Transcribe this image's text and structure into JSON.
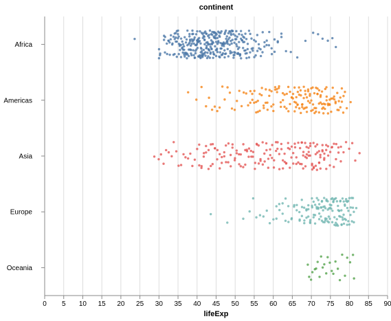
{
  "chart_data": {
    "type": "scatter",
    "title": "continent",
    "xlabel": "lifeExp",
    "ylabel": "",
    "xlim": [
      0,
      90
    ],
    "x_ticks": [
      0,
      5,
      10,
      15,
      20,
      25,
      30,
      35,
      40,
      45,
      50,
      55,
      60,
      65,
      70,
      75,
      80,
      85,
      90
    ],
    "grid": true,
    "jitter": true,
    "categories": [
      "Africa",
      "Americas",
      "Asia",
      "Europe",
      "Oceania"
    ],
    "series": [
      {
        "category": "Africa",
        "color": "#4C78A8",
        "values": [
          23.6,
          30.0,
          30.3,
          31.3,
          31.6,
          32.1,
          32.5,
          32.8,
          33.1,
          33.5,
          33.8,
          34.1,
          34.4,
          34.7,
          35.0,
          35.2,
          35.5,
          35.8,
          36.1,
          36.3,
          36.6,
          36.8,
          37.1,
          37.3,
          37.5,
          37.8,
          38.0,
          38.2,
          38.4,
          38.6,
          38.8,
          39.0,
          39.2,
          39.4,
          39.6,
          39.8,
          40.0,
          40.1,
          40.3,
          40.5,
          40.7,
          40.9,
          41.0,
          41.2,
          41.4,
          41.5,
          41.7,
          41.9,
          42.0,
          42.2,
          42.4,
          42.5,
          42.7,
          42.9,
          43.0,
          43.2,
          43.4,
          43.5,
          43.7,
          43.9,
          44.0,
          44.2,
          44.4,
          44.5,
          44.7,
          44.9,
          45.0,
          45.2,
          45.4,
          45.6,
          45.8,
          46.0,
          46.2,
          46.4,
          46.6,
          46.8,
          47.0,
          47.2,
          47.4,
          47.6,
          47.8,
          48.0,
          48.2,
          48.5,
          48.7,
          48.9,
          49.1,
          49.3,
          49.6,
          49.8,
          50.0,
          50.3,
          50.5,
          50.8,
          51.0,
          51.3,
          51.5,
          51.8,
          52.1,
          52.4,
          52.7,
          53.0,
          53.3,
          53.6,
          53.9,
          54.3,
          54.6,
          55.0,
          55.4,
          55.8,
          56.2,
          56.7,
          57.2,
          57.7,
          58.3,
          58.9,
          59.6,
          60.3,
          61.2,
          62.1,
          63.3,
          64.6,
          66.3,
          68.4,
          70.5,
          71.8,
          72.9,
          74.3,
          75.5,
          76.4
        ],
        "counts": [
          1,
          2,
          2,
          2,
          2,
          2,
          2,
          2,
          2,
          2,
          2,
          3,
          3,
          3,
          3,
          3,
          3,
          3,
          3,
          3,
          3,
          3,
          3,
          3,
          3,
          3,
          3,
          3,
          3,
          3,
          3,
          3,
          3,
          3,
          3,
          3,
          3,
          3,
          3,
          3,
          3,
          3,
          3,
          3,
          3,
          3,
          3,
          3,
          3,
          3,
          3,
          3,
          3,
          3,
          3,
          3,
          3,
          3,
          3,
          3,
          3,
          3,
          3,
          3,
          3,
          3,
          3,
          3,
          3,
          3,
          3,
          3,
          3,
          3,
          3,
          3,
          3,
          3,
          3,
          3,
          3,
          3,
          3,
          3,
          3,
          3,
          3,
          3,
          3,
          3,
          3,
          3,
          3,
          3,
          3,
          3,
          3,
          3,
          3,
          3,
          3,
          3,
          2,
          2,
          2,
          2,
          2,
          2,
          2,
          2,
          2,
          2,
          2,
          2,
          2,
          2,
          2,
          2,
          2,
          2,
          1,
          1,
          1,
          1,
          1,
          1,
          1,
          1,
          1,
          1,
          1
        ]
      },
      {
        "category": "Americas",
        "color": "#F58518",
        "values": [
          37.6,
          39.8,
          41.2,
          42.3,
          43.1,
          43.9,
          44.6,
          45.3,
          45.9,
          46.6,
          47.3,
          48.0,
          48.6,
          49.2,
          49.9,
          50.5,
          51.1,
          51.7,
          52.3,
          52.9,
          53.4,
          54.0,
          54.5,
          55.0,
          55.5,
          56.0,
          56.5,
          57.0,
          57.5,
          58.0,
          58.5,
          59.0,
          59.5,
          60.0,
          60.5,
          61.0,
          61.5,
          62.0,
          62.5,
          63.0,
          63.5,
          64.0,
          64.4,
          64.8,
          65.2,
          65.6,
          66.0,
          66.4,
          66.8,
          67.2,
          67.6,
          68.0,
          68.4,
          68.8,
          69.2,
          69.6,
          70.0,
          70.4,
          70.8,
          71.2,
          71.6,
          72.0,
          72.4,
          72.8,
          73.2,
          73.6,
          74.0,
          74.4,
          74.8,
          75.2,
          75.6,
          76.0,
          76.4,
          76.8,
          77.2,
          77.6,
          78.0,
          78.4,
          78.8,
          79.3,
          80.3
        ],
        "counts": [
          1,
          1,
          1,
          1,
          1,
          1,
          1,
          1,
          1,
          1,
          1,
          1,
          1,
          1,
          1,
          1,
          1,
          1,
          1,
          1,
          1,
          2,
          2,
          2,
          2,
          2,
          2,
          2,
          2,
          2,
          2,
          2,
          2,
          2,
          2,
          2,
          2,
          2,
          2,
          2,
          2,
          2,
          2,
          2,
          2,
          3,
          3,
          3,
          3,
          3,
          3,
          3,
          3,
          3,
          3,
          3,
          3,
          3,
          3,
          3,
          3,
          3,
          3,
          3,
          3,
          3,
          3,
          3,
          3,
          2,
          2,
          2,
          2,
          2,
          2,
          2,
          2,
          2,
          1,
          1,
          1
        ]
      },
      {
        "category": "Asia",
        "color": "#E45756",
        "values": [
          28.8,
          29.9,
          30.5,
          31.2,
          31.9,
          32.6,
          33.3,
          33.9,
          34.5,
          35.2,
          35.8,
          36.4,
          37.0,
          37.6,
          38.2,
          38.8,
          39.4,
          40.0,
          40.6,
          41.2,
          41.8,
          42.4,
          43.0,
          43.6,
          44.1,
          44.7,
          45.3,
          45.9,
          46.5,
          47.1,
          47.6,
          48.2,
          48.8,
          49.3,
          49.9,
          50.4,
          51.0,
          51.5,
          52.1,
          52.6,
          53.1,
          53.6,
          54.2,
          54.7,
          55.2,
          55.7,
          56.2,
          56.7,
          57.2,
          57.7,
          58.2,
          58.7,
          59.2,
          59.7,
          60.2,
          60.7,
          61.1,
          61.6,
          62.1,
          62.5,
          63.0,
          63.4,
          63.9,
          64.3,
          64.8,
          65.2,
          65.7,
          66.1,
          66.6,
          67.0,
          67.5,
          67.9,
          68.4,
          68.8,
          69.3,
          69.7,
          70.2,
          70.6,
          71.1,
          71.5,
          72.0,
          72.4,
          72.9,
          73.4,
          73.9,
          74.4,
          74.9,
          75.4,
          75.9,
          76.5,
          77.1,
          77.7,
          78.4,
          79.1,
          79.9,
          80.7,
          81.5,
          82.6
        ],
        "counts": [
          1,
          1,
          1,
          1,
          1,
          1,
          1,
          1,
          1,
          1,
          1,
          1,
          1,
          1,
          1,
          1,
          1,
          1,
          2,
          2,
          2,
          2,
          2,
          2,
          2,
          2,
          2,
          2,
          2,
          2,
          2,
          2,
          2,
          2,
          2,
          2,
          2,
          2,
          2,
          2,
          2,
          2,
          2,
          2,
          2,
          2,
          2,
          2,
          2,
          2,
          2,
          2,
          2,
          2,
          2,
          2,
          2,
          2,
          2,
          2,
          2,
          2,
          2,
          2,
          2,
          2,
          2,
          2,
          2,
          2,
          3,
          3,
          3,
          3,
          3,
          3,
          3,
          3,
          3,
          3,
          3,
          3,
          3,
          3,
          3,
          2,
          2,
          2,
          2,
          2,
          2,
          2,
          1,
          1,
          1,
          1,
          1,
          1
        ]
      },
      {
        "category": "Europe",
        "color": "#72B7B2",
        "values": [
          43.6,
          47.9,
          52.1,
          53.8,
          54.7,
          55.6,
          56.5,
          57.4,
          58.3,
          59.1,
          60.0,
          60.8,
          61.6,
          62.4,
          63.2,
          64.0,
          64.8,
          65.5,
          66.2,
          66.9,
          67.5,
          68.1,
          68.7,
          69.2,
          69.7,
          70.2,
          70.6,
          71.0,
          71.4,
          71.8,
          72.1,
          72.5,
          72.8,
          73.1,
          73.4,
          73.7,
          74.0,
          74.3,
          74.6,
          74.9,
          75.2,
          75.5,
          75.8,
          76.1,
          76.4,
          76.7,
          77.0,
          77.3,
          77.6,
          77.9,
          78.2,
          78.5,
          78.8,
          79.1,
          79.4,
          79.7,
          80.0,
          80.3,
          80.6,
          80.9,
          81.2,
          81.8
        ],
        "counts": [
          1,
          1,
          1,
          1,
          1,
          1,
          1,
          1,
          1,
          1,
          1,
          2,
          2,
          2,
          2,
          2,
          2,
          2,
          2,
          3,
          3,
          3,
          3,
          3,
          3,
          3,
          3,
          3,
          3,
          3,
          3,
          3,
          3,
          3,
          3,
          3,
          3,
          3,
          3,
          3,
          3,
          3,
          3,
          3,
          3,
          3,
          3,
          3,
          3,
          3,
          3,
          3,
          3,
          3,
          3,
          3,
          2,
          2,
          2,
          2,
          2,
          1
        ]
      },
      {
        "category": "Oceania",
        "color": "#54A24B",
        "values": [
          69.1,
          69.4,
          69.9,
          70.3,
          70.9,
          71.2,
          71.6,
          72.1,
          72.5,
          73.0,
          73.4,
          73.9,
          74.3,
          74.8,
          75.3,
          75.8,
          76.3,
          76.9,
          77.5,
          78.1,
          78.8,
          79.4,
          80.2,
          80.9,
          81.2
        ],
        "counts": [
          1,
          1,
          1,
          1,
          1,
          1,
          1,
          1,
          1,
          1,
          1,
          1,
          1,
          1,
          1,
          1,
          1,
          1,
          1,
          1,
          1,
          1,
          1,
          1,
          1
        ]
      }
    ]
  }
}
